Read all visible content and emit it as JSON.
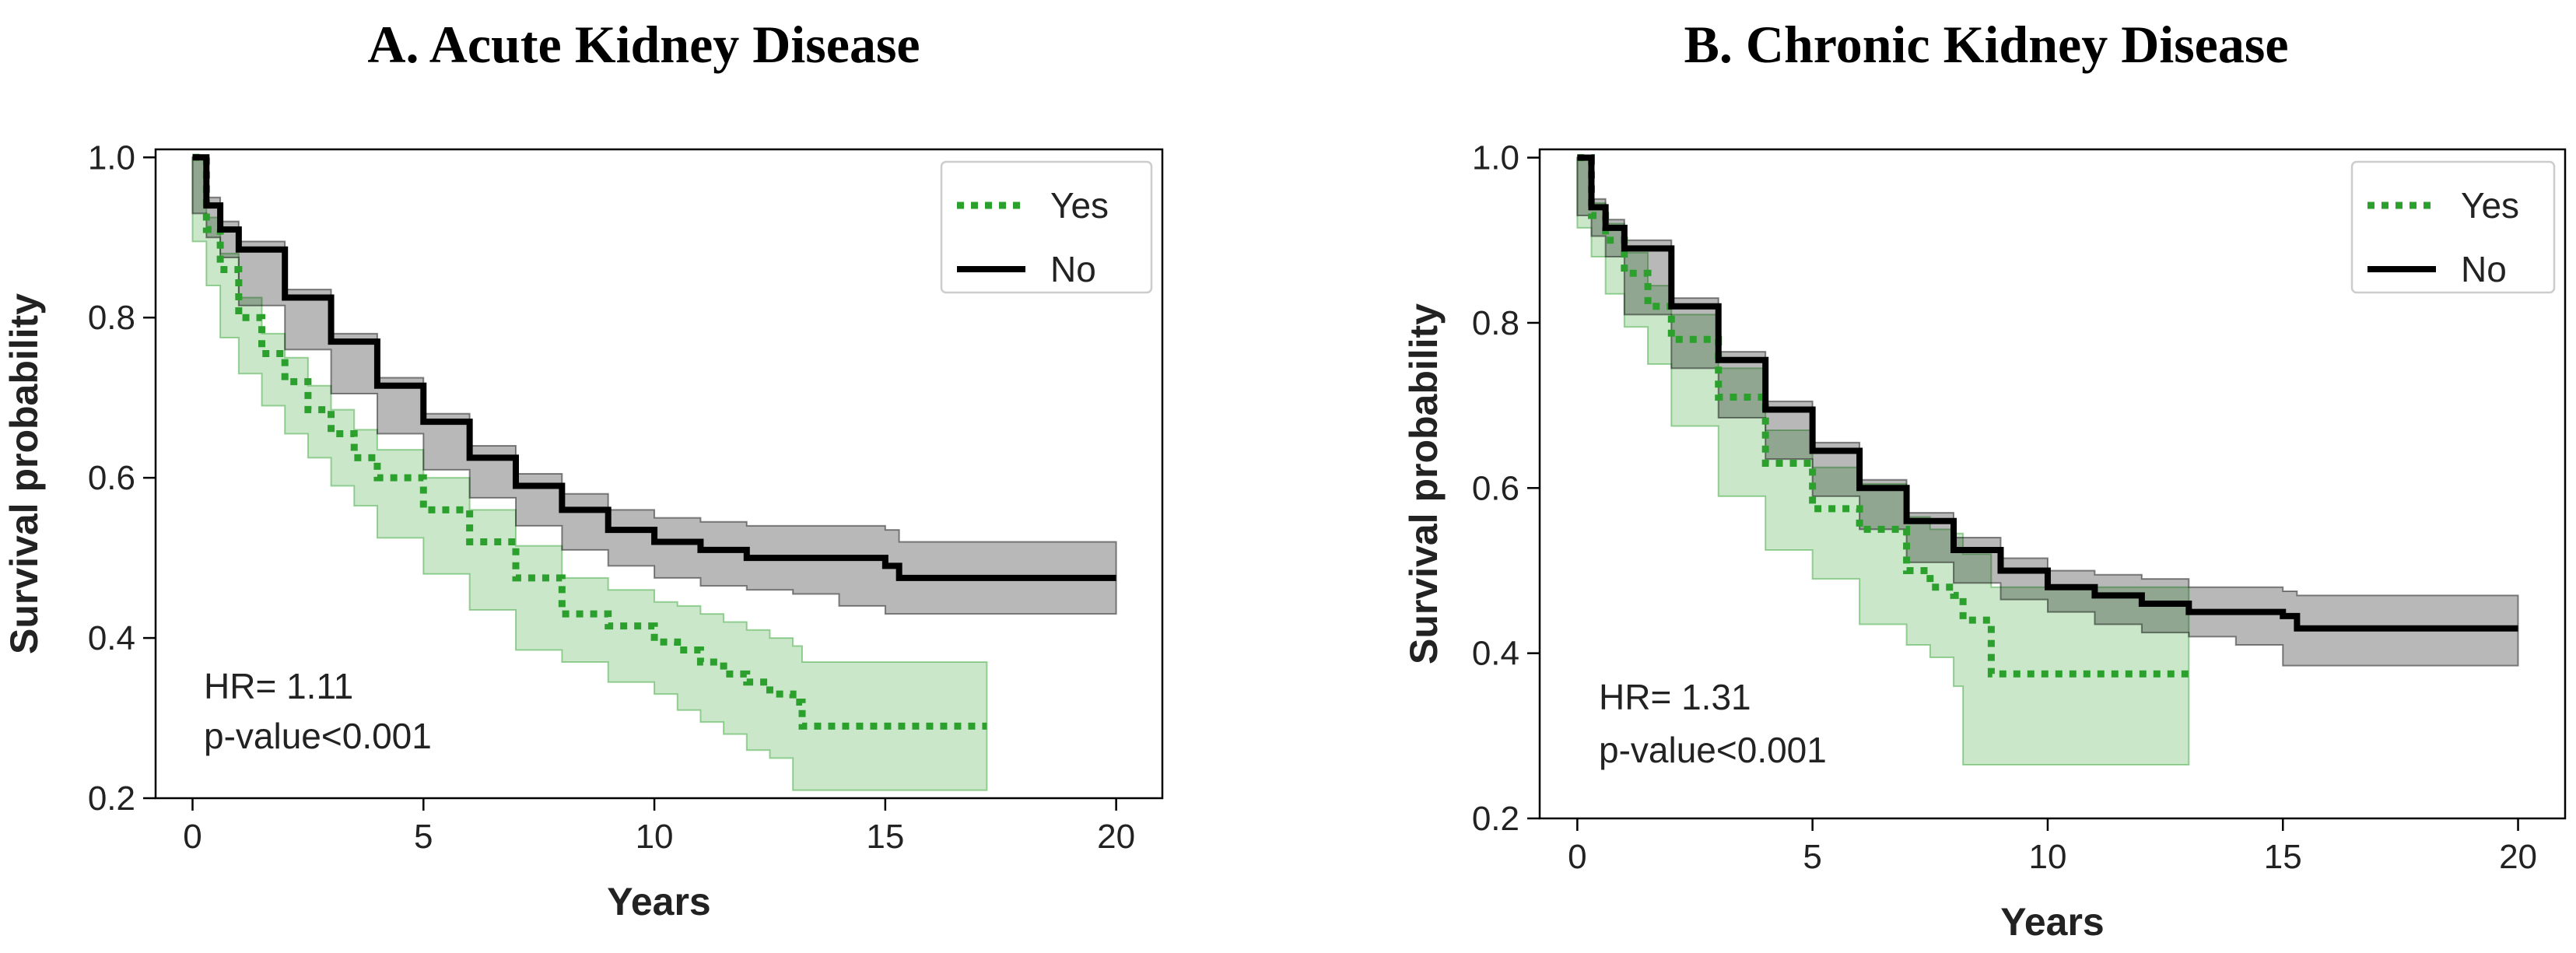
{
  "chart_data": [
    {
      "type": "line",
      "title": "A.  Acute Kidney Disease",
      "xlabel": "Years",
      "ylabel": "Survival probability",
      "xlim": [
        -0.8,
        21.0
      ],
      "ylim": [
        0.2,
        1.01
      ],
      "xticks": [
        "0",
        "5",
        "10",
        "15",
        "20"
      ],
      "yticks": [
        "0.2",
        "0.4",
        "0.6",
        "0.8",
        "1.0"
      ],
      "legend_position": "top-right",
      "grid": false,
      "annotations": [
        "HR= 1.11",
        "p-value<0.001"
      ],
      "series": [
        {
          "name": "Yes",
          "color": "#2ca02c",
          "style": "dotted",
          "x": [
            0,
            0.3,
            0.6,
            1,
            1.5,
            2,
            2.5,
            3,
            3.5,
            4,
            5,
            6,
            7,
            8,
            9,
            10,
            10.5,
            11,
            11.5,
            12,
            12.5,
            13,
            13.2,
            14,
            15,
            16,
            17.2
          ],
          "y": [
            1.0,
            0.91,
            0.86,
            0.8,
            0.755,
            0.72,
            0.685,
            0.655,
            0.625,
            0.6,
            0.56,
            0.52,
            0.475,
            0.43,
            0.415,
            0.395,
            0.385,
            0.37,
            0.355,
            0.345,
            0.33,
            0.32,
            0.29,
            0.29,
            0.29,
            0.29,
            0.29
          ],
          "ci_lower": [
            1.0,
            0.895,
            0.84,
            0.775,
            0.73,
            0.69,
            0.655,
            0.625,
            0.59,
            0.565,
            0.525,
            0.48,
            0.435,
            0.385,
            0.37,
            0.345,
            0.33,
            0.31,
            0.295,
            0.28,
            0.26,
            0.25,
            0.21,
            0.21,
            0.21,
            0.21,
            0.21
          ],
          "ci_upper": [
            1.0,
            0.925,
            0.88,
            0.825,
            0.78,
            0.75,
            0.715,
            0.685,
            0.66,
            0.635,
            0.6,
            0.56,
            0.515,
            0.475,
            0.46,
            0.445,
            0.44,
            0.43,
            0.42,
            0.41,
            0.4,
            0.39,
            0.37,
            0.37,
            0.37,
            0.37,
            0.37
          ]
        },
        {
          "name": "No",
          "color": "#000000",
          "style": "solid",
          "x": [
            0,
            0.3,
            0.6,
            1,
            2,
            3,
            4,
            5,
            6,
            7,
            8,
            9,
            10,
            11,
            12,
            13,
            14,
            15,
            15.3,
            16,
            18,
            20
          ],
          "y": [
            1.0,
            0.94,
            0.91,
            0.885,
            0.825,
            0.77,
            0.715,
            0.67,
            0.625,
            0.59,
            0.56,
            0.535,
            0.52,
            0.51,
            0.5,
            0.5,
            0.5,
            0.49,
            0.475,
            0.475,
            0.475,
            0.475
          ],
          "ci_lower": [
            1.0,
            0.93,
            0.9,
            0.875,
            0.815,
            0.76,
            0.705,
            0.655,
            0.61,
            0.575,
            0.54,
            0.51,
            0.49,
            0.475,
            0.465,
            0.46,
            0.455,
            0.44,
            0.43,
            0.43,
            0.43,
            0.43
          ],
          "ci_upper": [
            1.0,
            0.95,
            0.92,
            0.895,
            0.835,
            0.78,
            0.725,
            0.68,
            0.64,
            0.605,
            0.58,
            0.56,
            0.55,
            0.545,
            0.54,
            0.54,
            0.54,
            0.535,
            0.52,
            0.52,
            0.52,
            0.52
          ]
        }
      ]
    },
    {
      "type": "line",
      "title": "B. Chronic Kidney Disease",
      "xlabel": "Years",
      "ylabel": "Survival probability",
      "xlim": [
        -0.8,
        21.0
      ],
      "ylim": [
        0.2,
        1.01
      ],
      "xticks": [
        "0",
        "5",
        "10",
        "15",
        "20"
      ],
      "yticks": [
        "0.2",
        "0.4",
        "0.6",
        "0.8",
        "1.0"
      ],
      "legend_position": "top-right",
      "grid": false,
      "annotations": [
        "HR= 1.31",
        "p-value<0.001"
      ],
      "series": [
        {
          "name": "Yes",
          "color": "#2ca02c",
          "style": "dotted",
          "x": [
            0,
            0.3,
            0.6,
            1,
            1.5,
            2,
            3,
            4,
            5,
            6,
            7,
            7.5,
            8,
            8.2,
            8.8,
            9,
            10,
            11,
            12,
            13
          ],
          "y": [
            1.0,
            0.93,
            0.9,
            0.86,
            0.82,
            0.78,
            0.71,
            0.63,
            0.575,
            0.55,
            0.5,
            0.48,
            0.47,
            0.44,
            0.375,
            0.375,
            0.375,
            0.375,
            0.375,
            0.375
          ],
          "ci_lower": [
            1.0,
            0.915,
            0.88,
            0.835,
            0.795,
            0.75,
            0.675,
            0.59,
            0.525,
            0.49,
            0.435,
            0.41,
            0.395,
            0.36,
            0.265,
            0.265,
            0.265,
            0.265,
            0.265,
            0.265
          ],
          "ci_upper": [
            1.0,
            0.945,
            0.92,
            0.885,
            0.845,
            0.81,
            0.745,
            0.67,
            0.625,
            0.605,
            0.565,
            0.55,
            0.545,
            0.52,
            0.48,
            0.48,
            0.48,
            0.48,
            0.48,
            0.48
          ]
        },
        {
          "name": "No",
          "color": "#000000",
          "style": "solid",
          "x": [
            0,
            0.3,
            0.6,
            1,
            2,
            3,
            4,
            5,
            6,
            7,
            8,
            9,
            10,
            11,
            12,
            13,
            14,
            15,
            15.3,
            16,
            18,
            20
          ],
          "y": [
            1.0,
            0.94,
            0.915,
            0.89,
            0.82,
            0.755,
            0.695,
            0.645,
            0.6,
            0.56,
            0.525,
            0.5,
            0.48,
            0.47,
            0.46,
            0.45,
            0.45,
            0.445,
            0.43,
            0.43,
            0.43,
            0.43
          ],
          "ci_lower": [
            1.0,
            0.93,
            0.905,
            0.88,
            0.81,
            0.745,
            0.685,
            0.635,
            0.59,
            0.55,
            0.51,
            0.485,
            0.465,
            0.45,
            0.435,
            0.425,
            0.42,
            0.41,
            0.385,
            0.385,
            0.385,
            0.385
          ],
          "ci_upper": [
            1.0,
            0.95,
            0.925,
            0.9,
            0.83,
            0.765,
            0.705,
            0.655,
            0.61,
            0.57,
            0.54,
            0.515,
            0.5,
            0.495,
            0.49,
            0.48,
            0.48,
            0.475,
            0.47,
            0.47,
            0.47,
            0.47
          ]
        }
      ]
    }
  ]
}
